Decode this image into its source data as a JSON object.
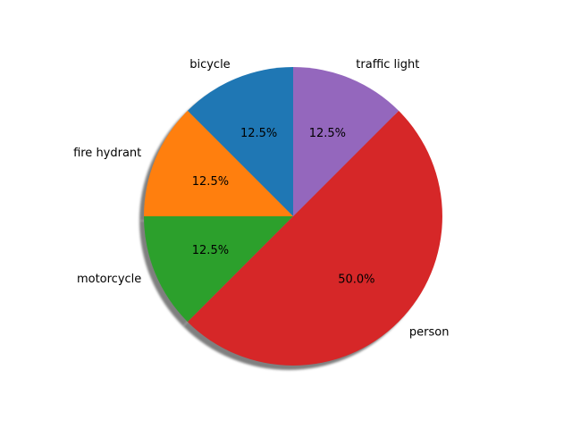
{
  "chart_data": {
    "type": "pie",
    "title": "",
    "categories": [
      "bicycle",
      "fire hydrant",
      "motorcycle",
      "person",
      "traffic light"
    ],
    "values": [
      12.5,
      12.5,
      12.5,
      50.0,
      12.5
    ],
    "value_labels": [
      "12.5%",
      "12.5%",
      "12.5%",
      "50.0%",
      "12.5%"
    ],
    "colors": [
      "#1f77b4",
      "#ff7f0e",
      "#2ca02c",
      "#d62728",
      "#9467bd"
    ],
    "start_angle_deg": 90,
    "direction": "counterclockwise",
    "shadow": true,
    "legend": "none"
  }
}
